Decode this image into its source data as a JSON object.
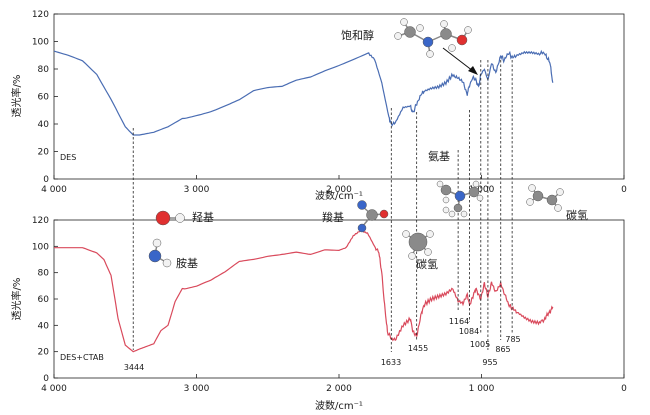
{
  "chart_data": [
    {
      "type": "line",
      "panel_label": "DES",
      "xlabel": "波数/cm⁻¹",
      "ylabel": "透光率/%",
      "xlim": [
        4000,
        0
      ],
      "ylim": [
        0,
        120
      ],
      "x_ticks": [
        "4 000",
        "3 000",
        "2 000",
        "1 000",
        "0"
      ],
      "y_ticks": [
        "0",
        "20",
        "40",
        "60",
        "80",
        "100",
        "120"
      ],
      "line_color": "#4a6db3",
      "series": [
        {
          "name": "DES",
          "x": [
            4000,
            3900,
            3800,
            3700,
            3600,
            3500,
            3444,
            3400,
            3300,
            3200,
            3100,
            3000,
            2900,
            2800,
            2700,
            2600,
            2500,
            2400,
            2300,
            2200,
            2100,
            2000,
            1900,
            1800,
            1750,
            1700,
            1650,
            1633,
            1600,
            1550,
            1500,
            1480,
            1455,
            1420,
            1400,
            1350,
            1300,
            1250,
            1200,
            1164,
            1130,
            1100,
            1084,
            1060,
            1040,
            1020,
            1005,
            980,
            955,
            930,
            900,
            865,
            840,
            810,
            785,
            750,
            700,
            650,
            600,
            560,
            540,
            520,
            500
          ],
          "y": [
            93,
            90,
            86,
            76,
            58,
            38,
            32,
            32,
            34,
            38,
            44,
            47,
            50,
            54,
            58,
            64,
            66,
            67,
            72,
            75,
            80,
            84,
            88,
            92,
            87,
            70,
            45,
            40,
            42,
            52,
            53,
            48,
            55,
            62,
            64,
            66,
            67,
            70,
            76,
            73,
            70,
            62,
            68,
            74,
            72,
            67,
            76,
            80,
            72,
            84,
            78,
            90,
            86,
            92,
            88,
            90,
            92,
            92,
            91,
            92,
            88,
            85,
            70
          ]
        }
      ],
      "annotations": {
        "saturated_alcohol": "饱和醇",
        "amine": "氨基"
      }
    },
    {
      "type": "line",
      "panel_label": "DES+CTAB",
      "xlabel": "波数/cm⁻¹",
      "ylabel": "透光率/%",
      "xlim": [
        4000,
        0
      ],
      "ylim": [
        0,
        120
      ],
      "x_ticks": [
        "4 000",
        "3 000",
        "2 000",
        "1 000",
        "0"
      ],
      "y_ticks": [
        "0",
        "20",
        "40",
        "60",
        "80",
        "100",
        "120"
      ],
      "line_color": "#d94a5c",
      "series": [
        {
          "name": "DES+CTAB",
          "x": [
            4000,
            3900,
            3800,
            3700,
            3650,
            3600,
            3550,
            3500,
            3444,
            3400,
            3350,
            3300,
            3250,
            3200,
            3150,
            3100,
            3000,
            2900,
            2800,
            2700,
            2600,
            2500,
            2400,
            2300,
            2200,
            2100,
            2000,
            1950,
            1900,
            1850,
            1800,
            1750,
            1720,
            1700,
            1680,
            1660,
            1633,
            1600,
            1550,
            1500,
            1480,
            1455,
            1420,
            1400,
            1350,
            1300,
            1250,
            1200,
            1164,
            1130,
            1100,
            1084,
            1060,
            1040,
            1020,
            1005,
            980,
            955,
            930,
            900,
            865,
            840,
            810,
            785,
            750,
            700,
            650,
            600,
            560,
            540,
            520,
            500
          ],
          "y": [
            99,
            99,
            99,
            95,
            90,
            78,
            45,
            25,
            20,
            22,
            24,
            26,
            36,
            40,
            58,
            68,
            70,
            74,
            80,
            88,
            90,
            93,
            95,
            97,
            95,
            98,
            97,
            99,
            108,
            112,
            110,
            100,
            95,
            80,
            55,
            35,
            30,
            30,
            40,
            45,
            35,
            32,
            50,
            56,
            60,
            62,
            64,
            68,
            58,
            56,
            64,
            55,
            62,
            68,
            63,
            60,
            72,
            62,
            72,
            66,
            72,
            64,
            56,
            53,
            50,
            46,
            43,
            42,
            44,
            48,
            50,
            54
          ]
        }
      ],
      "peak_labels": [
        "3444",
        "1633",
        "1455",
        "1164",
        "1084",
        "1005",
        "955",
        "865",
        "785"
      ],
      "annotations": {
        "hydroxyl": "羟基",
        "amino": "胺基",
        "carboxyl": "羧基",
        "ch_upper": "碳氢",
        "ch_right": "碳氢"
      }
    }
  ],
  "colors": {
    "oxygen": "#e03030",
    "nitrogen": "#3a66c8",
    "carbon": "#8a8a8a",
    "hydrogen": "#f2f2f2"
  }
}
